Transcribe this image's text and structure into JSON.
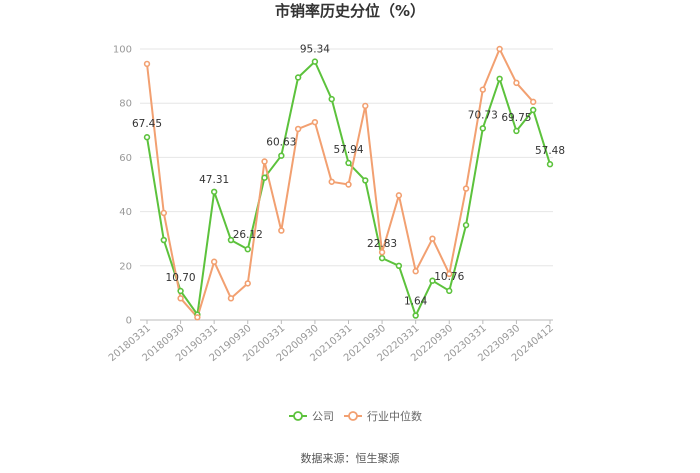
{
  "chart_data": {
    "type": "line",
    "title": "市销率历史分位（%）",
    "source": "数据来源：恒生聚源",
    "ylim": [
      0,
      100
    ],
    "yticks": [
      0,
      20,
      40,
      60,
      80,
      100
    ],
    "grid": true,
    "legend_position": "bottom",
    "x_tick_labels": [
      "20180331",
      "20180930",
      "20190331",
      "20190930",
      "20200331",
      "20200930",
      "20210331",
      "20210930",
      "20220331",
      "20220930",
      "20230331",
      "20230930",
      "20240412"
    ],
    "series": [
      {
        "name": "公司",
        "color": "#5cc23c",
        "values": [
          67.45,
          29.5,
          10.7,
          2.0,
          47.31,
          29.5,
          26.12,
          52.5,
          60.63,
          89.5,
          95.34,
          81.5,
          57.94,
          51.5,
          22.83,
          20.0,
          1.64,
          14.5,
          10.76,
          35.0,
          70.73,
          89.0,
          69.75,
          77.5,
          57.48
        ],
        "labels": {
          "0": "67.45",
          "2": "10.70",
          "4": "47.31",
          "6": "26.12",
          "8": "60.63",
          "10": "95.34",
          "12": "57.94",
          "14": "22.83",
          "16": "1.64",
          "18": "10.76",
          "20": "70.73",
          "22": "69.75",
          "24": "57.48"
        }
      },
      {
        "name": "行业中位数",
        "color": "#f2a071",
        "values": [
          94.5,
          39.5,
          8.0,
          1.0,
          21.5,
          8.0,
          13.5,
          58.5,
          33.0,
          70.5,
          73.0,
          51.0,
          50.0,
          79.0,
          25.0,
          46.0,
          18.0,
          30.0,
          17.0,
          48.5,
          85.0,
          100.0,
          87.5,
          80.5
        ]
      }
    ]
  }
}
